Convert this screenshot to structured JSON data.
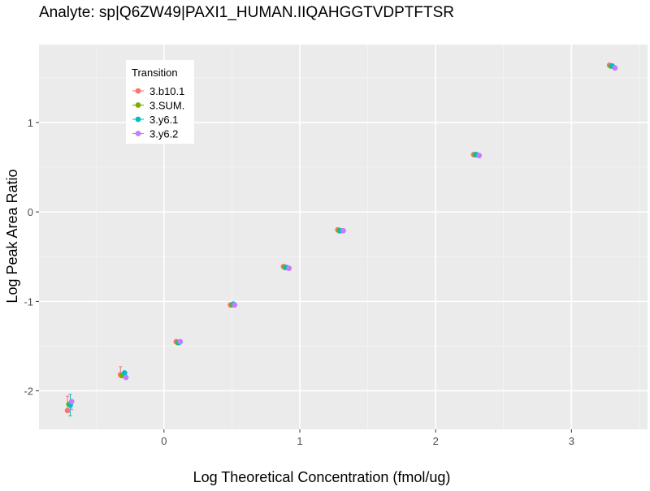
{
  "chart_data": {
    "type": "scatter",
    "title": "Analyte: sp|Q6ZW49|PAXI1_HUMAN.IIQAHGGTVDPTFTSR",
    "xlabel": "Log Theoretical Concentration (fmol/ug)",
    "ylabel": "Log Peak Area Ratio",
    "xlim": [
      -0.92,
      3.56
    ],
    "ylim": [
      -2.43,
      1.87
    ],
    "x_ticks": [
      0,
      1,
      2,
      3
    ],
    "x_tick_labels": [
      "0",
      "1",
      "2",
      "3"
    ],
    "y_ticks": [
      -2,
      -1,
      0,
      1
    ],
    "y_tick_labels": [
      "-2",
      "-1",
      "0",
      "1"
    ],
    "grid": true,
    "legend": {
      "title": "Transition",
      "position": "top-left"
    },
    "series": [
      {
        "name": "3.b10.1",
        "color": "#F8766D",
        "points": [
          [
            -0.71,
            -2.22
          ],
          [
            -0.32,
            -1.82
          ],
          [
            0.09,
            -1.45
          ],
          [
            0.49,
            -1.04
          ],
          [
            0.88,
            -0.61
          ],
          [
            1.28,
            -0.2
          ],
          [
            2.28,
            0.64
          ],
          [
            3.28,
            1.64
          ]
        ],
        "err_upper": [
          -2.06,
          -1.73,
          null,
          null,
          null,
          null,
          null,
          null
        ],
        "err_lower": [
          -2.22,
          -1.82,
          null,
          null,
          null,
          null,
          null,
          null
        ]
      },
      {
        "name": "3.SUM.",
        "color": "#7CAE00",
        "points": [
          [
            -0.7,
            -2.15
          ],
          [
            -0.31,
            -1.83
          ],
          [
            0.1,
            -1.46
          ],
          [
            0.5,
            -1.04
          ],
          [
            0.89,
            -0.62
          ],
          [
            1.29,
            -0.21
          ],
          [
            2.29,
            0.64
          ],
          [
            3.29,
            1.63
          ]
        ],
        "err_upper": [
          null,
          null,
          null,
          null,
          null,
          null,
          null,
          null
        ],
        "err_lower": [
          null,
          null,
          null,
          null,
          null,
          null,
          null,
          null
        ]
      },
      {
        "name": "3.y6.1",
        "color": "#00BFC4",
        "points": [
          [
            -0.69,
            -2.16
          ],
          [
            -0.29,
            -1.8
          ],
          [
            0.11,
            -1.46
          ],
          [
            0.51,
            -1.03
          ],
          [
            0.9,
            -0.62
          ],
          [
            1.3,
            -0.21
          ],
          [
            2.3,
            0.64
          ],
          [
            3.3,
            1.63
          ]
        ],
        "err_upper": [
          -2.04,
          null,
          null,
          null,
          null,
          null,
          null,
          null
        ],
        "err_lower": [
          -2.28,
          null,
          null,
          null,
          null,
          null,
          null,
          null
        ]
      },
      {
        "name": "3.y6.2",
        "color": "#C77CFF",
        "points": [
          [
            -0.68,
            -2.12
          ],
          [
            -0.28,
            -1.85
          ],
          [
            0.12,
            -1.45
          ],
          [
            0.52,
            -1.04
          ],
          [
            0.92,
            -0.63
          ],
          [
            1.32,
            -0.21
          ],
          [
            2.32,
            0.63
          ],
          [
            3.32,
            1.61
          ]
        ],
        "err_upper": [
          -2.12,
          null,
          null,
          null,
          null,
          null,
          null,
          null
        ],
        "err_lower": [
          -2.21,
          null,
          null,
          null,
          null,
          null,
          null,
          null
        ]
      }
    ]
  }
}
